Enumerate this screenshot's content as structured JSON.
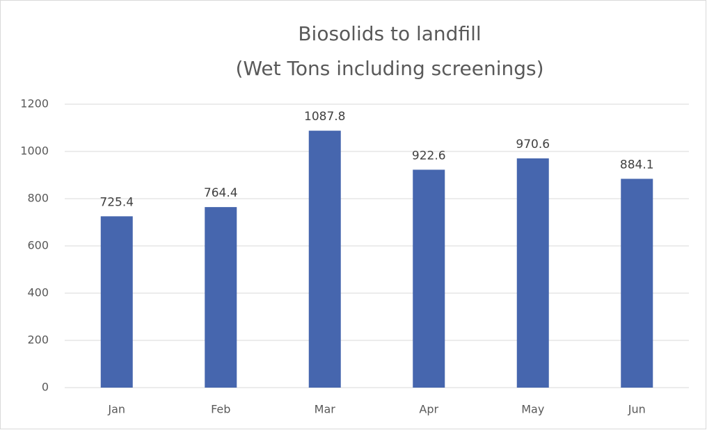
{
  "chart_data": {
    "type": "bar",
    "title": [
      "Biosolids to landfill",
      "(Wet Tons including screenings)"
    ],
    "categories": [
      "Jan",
      "Feb",
      "Mar",
      "Apr",
      "May",
      "Jun"
    ],
    "values": [
      725.4,
      764.4,
      1087.8,
      922.6,
      970.6,
      884.1
    ],
    "color": "#4666ae",
    "ylim": [
      0,
      1200
    ],
    "yticks": [
      0,
      200,
      400,
      600,
      800,
      1000,
      1200
    ],
    "grid": true
  }
}
